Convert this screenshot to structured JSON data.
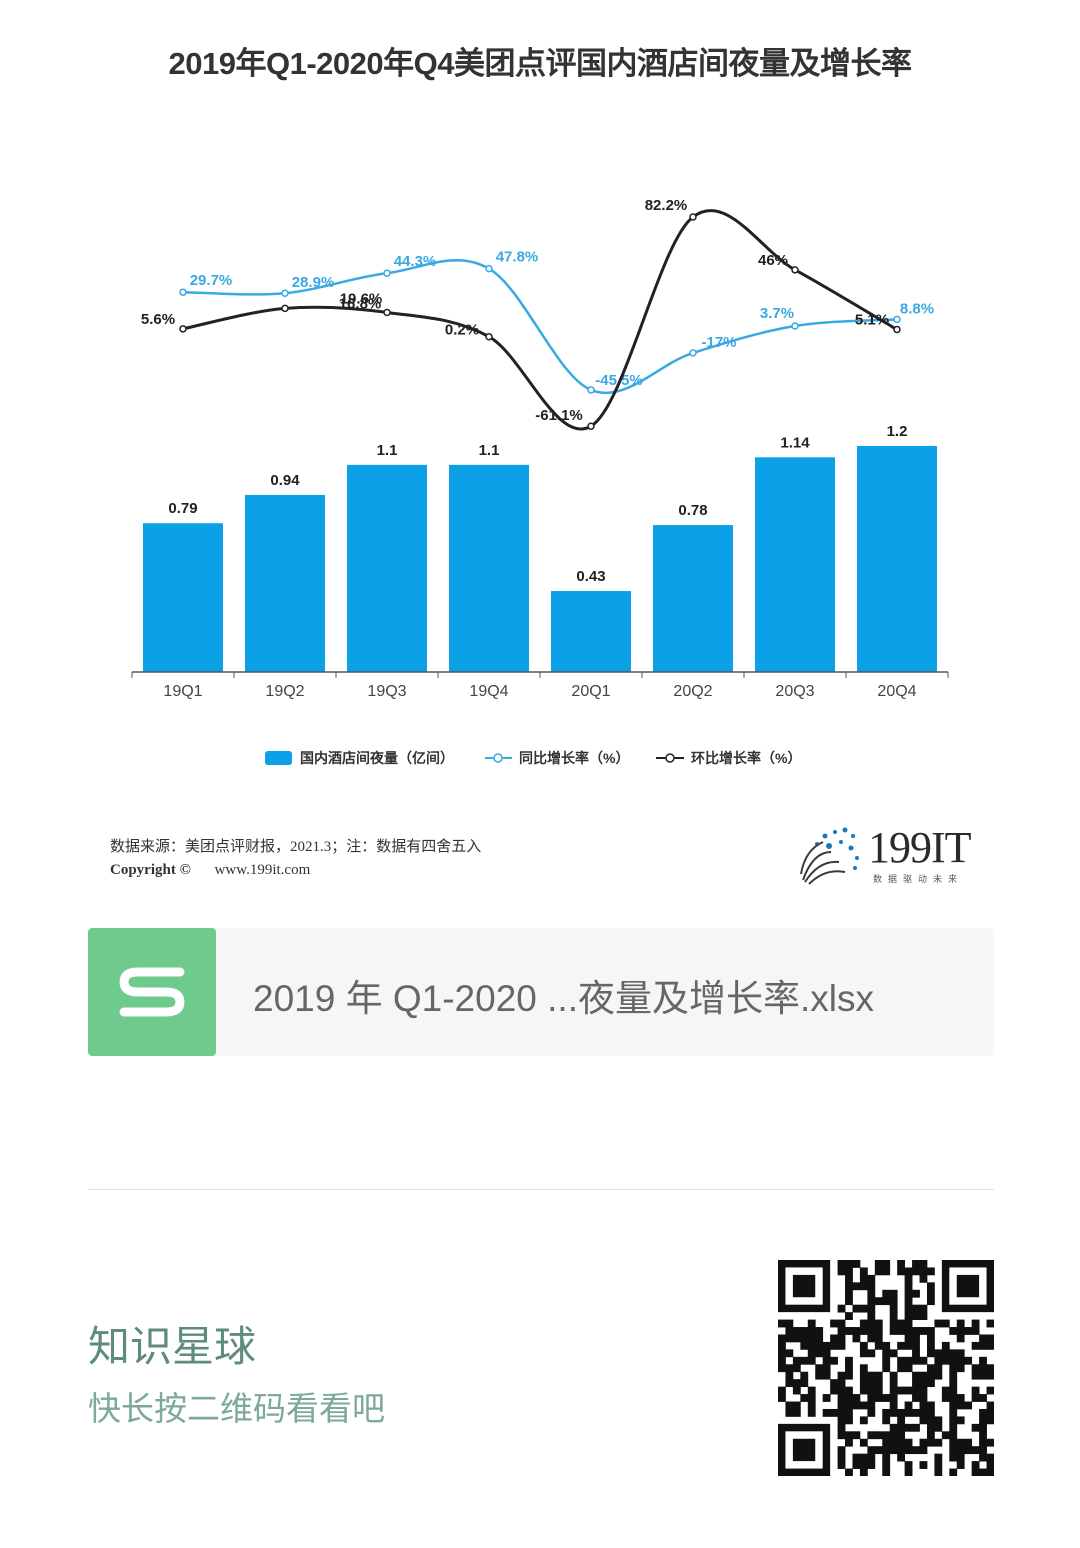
{
  "chart_data": {
    "type": "bar",
    "title": "2019年Q1-2020年Q4美团点评国内酒店间夜量及增长率",
    "categories": [
      "19Q1",
      "19Q2",
      "19Q3",
      "19Q4",
      "20Q1",
      "20Q2",
      "20Q3",
      "20Q4"
    ],
    "series": [
      {
        "name": "国内酒店间夜量（亿间）",
        "type": "bar",
        "color": "#0ca0e6",
        "values": [
          0.79,
          0.94,
          1.1,
          1.1,
          0.43,
          0.78,
          1.14,
          1.2
        ],
        "labels": [
          "0.79",
          "0.94",
          "1.1",
          "1.1",
          "0.43",
          "0.78",
          "1.14",
          "1.2"
        ]
      },
      {
        "name": "同比增长率（%）",
        "type": "line",
        "color": "#3aa8e2",
        "values": [
          29.7,
          28.9,
          44.3,
          47.8,
          -45.5,
          -17,
          3.7,
          8.8
        ],
        "labels": [
          "29.7%",
          "28.9%",
          "44.3%",
          "47.8%",
          "-45.5%",
          "-17%",
          "3.7%",
          "8.8%"
        ]
      },
      {
        "name": "环比增长率（%）",
        "type": "line",
        "color": "#222222",
        "values": [
          5.6,
          19.6,
          16.8,
          0.2,
          -61.1,
          82.2,
          46,
          5.1
        ],
        "labels": [
          "5.6%",
          "19.6%",
          "16.8%",
          "0.2%",
          "-61.1%",
          "82.2%",
          "46%",
          "5.1%"
        ]
      }
    ],
    "ylim_bar": [
      0,
      1.3
    ],
    "legend_position": "bottom",
    "grid": false
  },
  "source": {
    "text": "数据来源：美团点评财报，2021.3；注：数据有四舍五入",
    "copyright_label": "Copyright ©",
    "url": "www.199it.com"
  },
  "logo": {
    "text": "199IT",
    "slogan": "数据驱动未来"
  },
  "attachment": {
    "icon": "s-file-icon",
    "icon_color": "#6fca8d",
    "filename": "2019 年 Q1-2020 ...夜量及增长率.xlsx"
  },
  "promo": {
    "title": "知识星球",
    "subtitle": "快长按二维码看看吧",
    "qr_icon": "qr-code-icon"
  }
}
